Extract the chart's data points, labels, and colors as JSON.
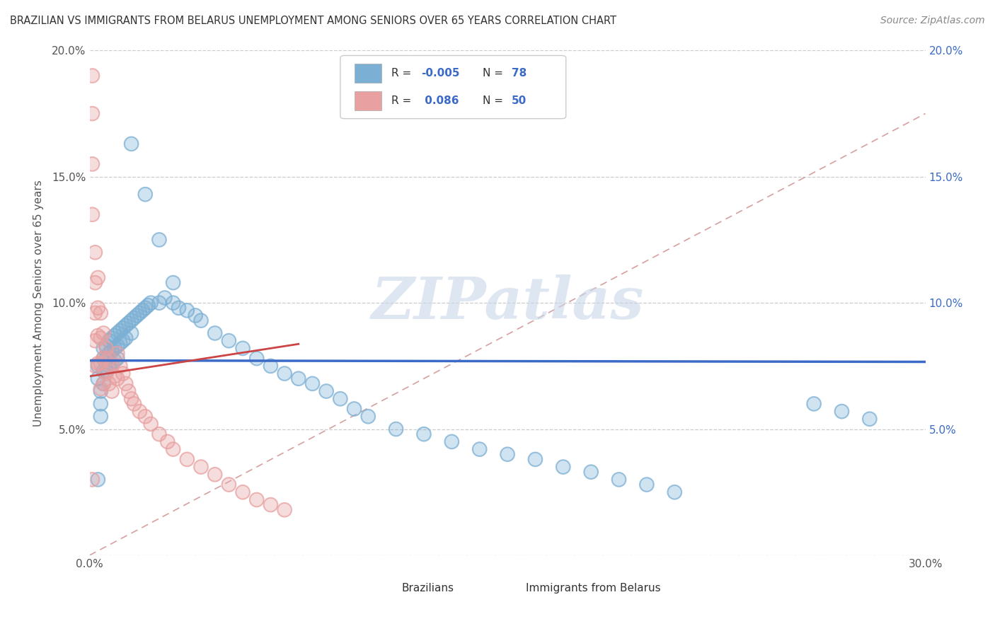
{
  "title": "BRAZILIAN VS IMMIGRANTS FROM BELARUS UNEMPLOYMENT AMONG SENIORS OVER 65 YEARS CORRELATION CHART",
  "source": "Source: ZipAtlas.com",
  "ylabel": "Unemployment Among Seniors over 65 years",
  "xlim": [
    0.0,
    0.3
  ],
  "ylim": [
    0.0,
    0.2
  ],
  "xticks": [
    0.0,
    0.05,
    0.1,
    0.15,
    0.2,
    0.25,
    0.3
  ],
  "yticks": [
    0.0,
    0.05,
    0.1,
    0.15,
    0.2
  ],
  "xticklabels": [
    "0.0%",
    "",
    "",
    "",
    "",
    "",
    "30.0%"
  ],
  "yticklabels": [
    "",
    "5.0%",
    "10.0%",
    "15.0%",
    "20.0%"
  ],
  "right_yticklabels": [
    "",
    "5.0%",
    "10.0%",
    "15.0%",
    "20.0%"
  ],
  "blue_color": "#7bafd4",
  "pink_color": "#e8a0a0",
  "blue_line_color": "#3b6bc7",
  "pink_line_color": "#cc4444",
  "watermark_text": "ZIPatlas",
  "blue_scatter_x": [
    0.003,
    0.003,
    0.004,
    0.004,
    0.004,
    0.005,
    0.005,
    0.005,
    0.005,
    0.006,
    0.006,
    0.006,
    0.007,
    0.007,
    0.007,
    0.008,
    0.008,
    0.008,
    0.009,
    0.009,
    0.009,
    0.01,
    0.01,
    0.01,
    0.011,
    0.011,
    0.012,
    0.012,
    0.013,
    0.013,
    0.014,
    0.015,
    0.015,
    0.016,
    0.017,
    0.018,
    0.019,
    0.02,
    0.021,
    0.022,
    0.025,
    0.027,
    0.03,
    0.032,
    0.035,
    0.038,
    0.04,
    0.045,
    0.05,
    0.055,
    0.06,
    0.065,
    0.07,
    0.075,
    0.08,
    0.085,
    0.09,
    0.095,
    0.1,
    0.11,
    0.12,
    0.13,
    0.14,
    0.15,
    0.16,
    0.17,
    0.18,
    0.19,
    0.2,
    0.21,
    0.015,
    0.02,
    0.025,
    0.03,
    0.26,
    0.27,
    0.28,
    0.003
  ],
  "blue_scatter_y": [
    0.075,
    0.07,
    0.065,
    0.06,
    0.055,
    0.082,
    0.078,
    0.073,
    0.068,
    0.083,
    0.078,
    0.073,
    0.085,
    0.08,
    0.075,
    0.086,
    0.081,
    0.076,
    0.087,
    0.082,
    0.077,
    0.088,
    0.083,
    0.078,
    0.089,
    0.084,
    0.09,
    0.085,
    0.091,
    0.086,
    0.092,
    0.093,
    0.088,
    0.094,
    0.095,
    0.096,
    0.097,
    0.098,
    0.099,
    0.1,
    0.1,
    0.102,
    0.1,
    0.098,
    0.097,
    0.095,
    0.093,
    0.088,
    0.085,
    0.082,
    0.078,
    0.075,
    0.072,
    0.07,
    0.068,
    0.065,
    0.062,
    0.058,
    0.055,
    0.05,
    0.048,
    0.045,
    0.042,
    0.04,
    0.038,
    0.035,
    0.033,
    0.03,
    0.028,
    0.025,
    0.163,
    0.143,
    0.125,
    0.108,
    0.06,
    0.057,
    0.054,
    0.03
  ],
  "pink_scatter_x": [
    0.001,
    0.001,
    0.001,
    0.001,
    0.002,
    0.002,
    0.002,
    0.002,
    0.002,
    0.003,
    0.003,
    0.003,
    0.003,
    0.004,
    0.004,
    0.004,
    0.004,
    0.005,
    0.005,
    0.005,
    0.006,
    0.006,
    0.007,
    0.007,
    0.008,
    0.008,
    0.009,
    0.01,
    0.01,
    0.011,
    0.012,
    0.013,
    0.014,
    0.015,
    0.016,
    0.018,
    0.02,
    0.022,
    0.025,
    0.028,
    0.03,
    0.035,
    0.04,
    0.045,
    0.05,
    0.055,
    0.06,
    0.065,
    0.07,
    0.001
  ],
  "pink_scatter_y": [
    0.19,
    0.175,
    0.155,
    0.135,
    0.12,
    0.108,
    0.096,
    0.085,
    0.075,
    0.11,
    0.098,
    0.087,
    0.076,
    0.096,
    0.086,
    0.076,
    0.066,
    0.088,
    0.078,
    0.068,
    0.082,
    0.072,
    0.078,
    0.068,
    0.075,
    0.065,
    0.071,
    0.08,
    0.07,
    0.075,
    0.072,
    0.068,
    0.065,
    0.062,
    0.06,
    0.057,
    0.055,
    0.052,
    0.048,
    0.045,
    0.042,
    0.038,
    0.035,
    0.032,
    0.028,
    0.025,
    0.022,
    0.02,
    0.018,
    0.03
  ]
}
